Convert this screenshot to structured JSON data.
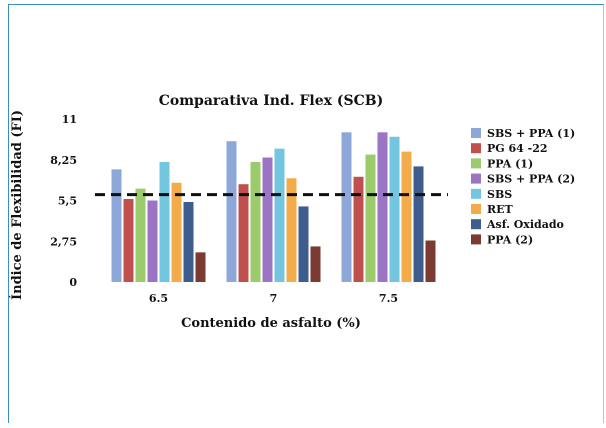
{
  "chart_data": {
    "type": "bar",
    "title": "Comparativa Ind. Flex (SCB)",
    "xlabel": "Contenido de asfalto (%)",
    "ylabel": "Índice de Flexibilidad (FI)",
    "categories": [
      "6.5",
      "7",
      "7.5"
    ],
    "y_ticks": [
      "0",
      "2,75",
      "5,5",
      "8,25",
      "11"
    ],
    "ylim": [
      0,
      11
    ],
    "reference_line": {
      "value": 5.9,
      "style": "dashed",
      "color": "#111111"
    },
    "legend_position": "right",
    "series": [
      {
        "name": "SBS + PPA (1)",
        "color": "#8da7d8",
        "values": [
          7.6,
          9.5,
          10.1
        ]
      },
      {
        "name": "PG 64 -22",
        "color": "#c0504d",
        "values": [
          5.6,
          6.6,
          7.1
        ]
      },
      {
        "name": "PPA (1)",
        "color": "#9bcb6a",
        "values": [
          6.3,
          8.1,
          8.6
        ]
      },
      {
        "name": "SBS + PPA (2)",
        "color": "#9b74c4",
        "values": [
          5.5,
          8.4,
          10.1
        ]
      },
      {
        "name": "SBS",
        "color": "#73c6e0",
        "values": [
          8.1,
          9.0,
          9.8
        ]
      },
      {
        "name": "RET",
        "color": "#f4ac4a",
        "values": [
          6.7,
          7.0,
          8.8
        ]
      },
      {
        "name": "Asf. Oxidado",
        "color": "#3f5d8c",
        "values": [
          5.4,
          5.1,
          7.8
        ]
      },
      {
        "name": "PPA (2)",
        "color": "#7b3a32",
        "values": [
          2.0,
          2.4,
          2.8
        ]
      }
    ]
  }
}
